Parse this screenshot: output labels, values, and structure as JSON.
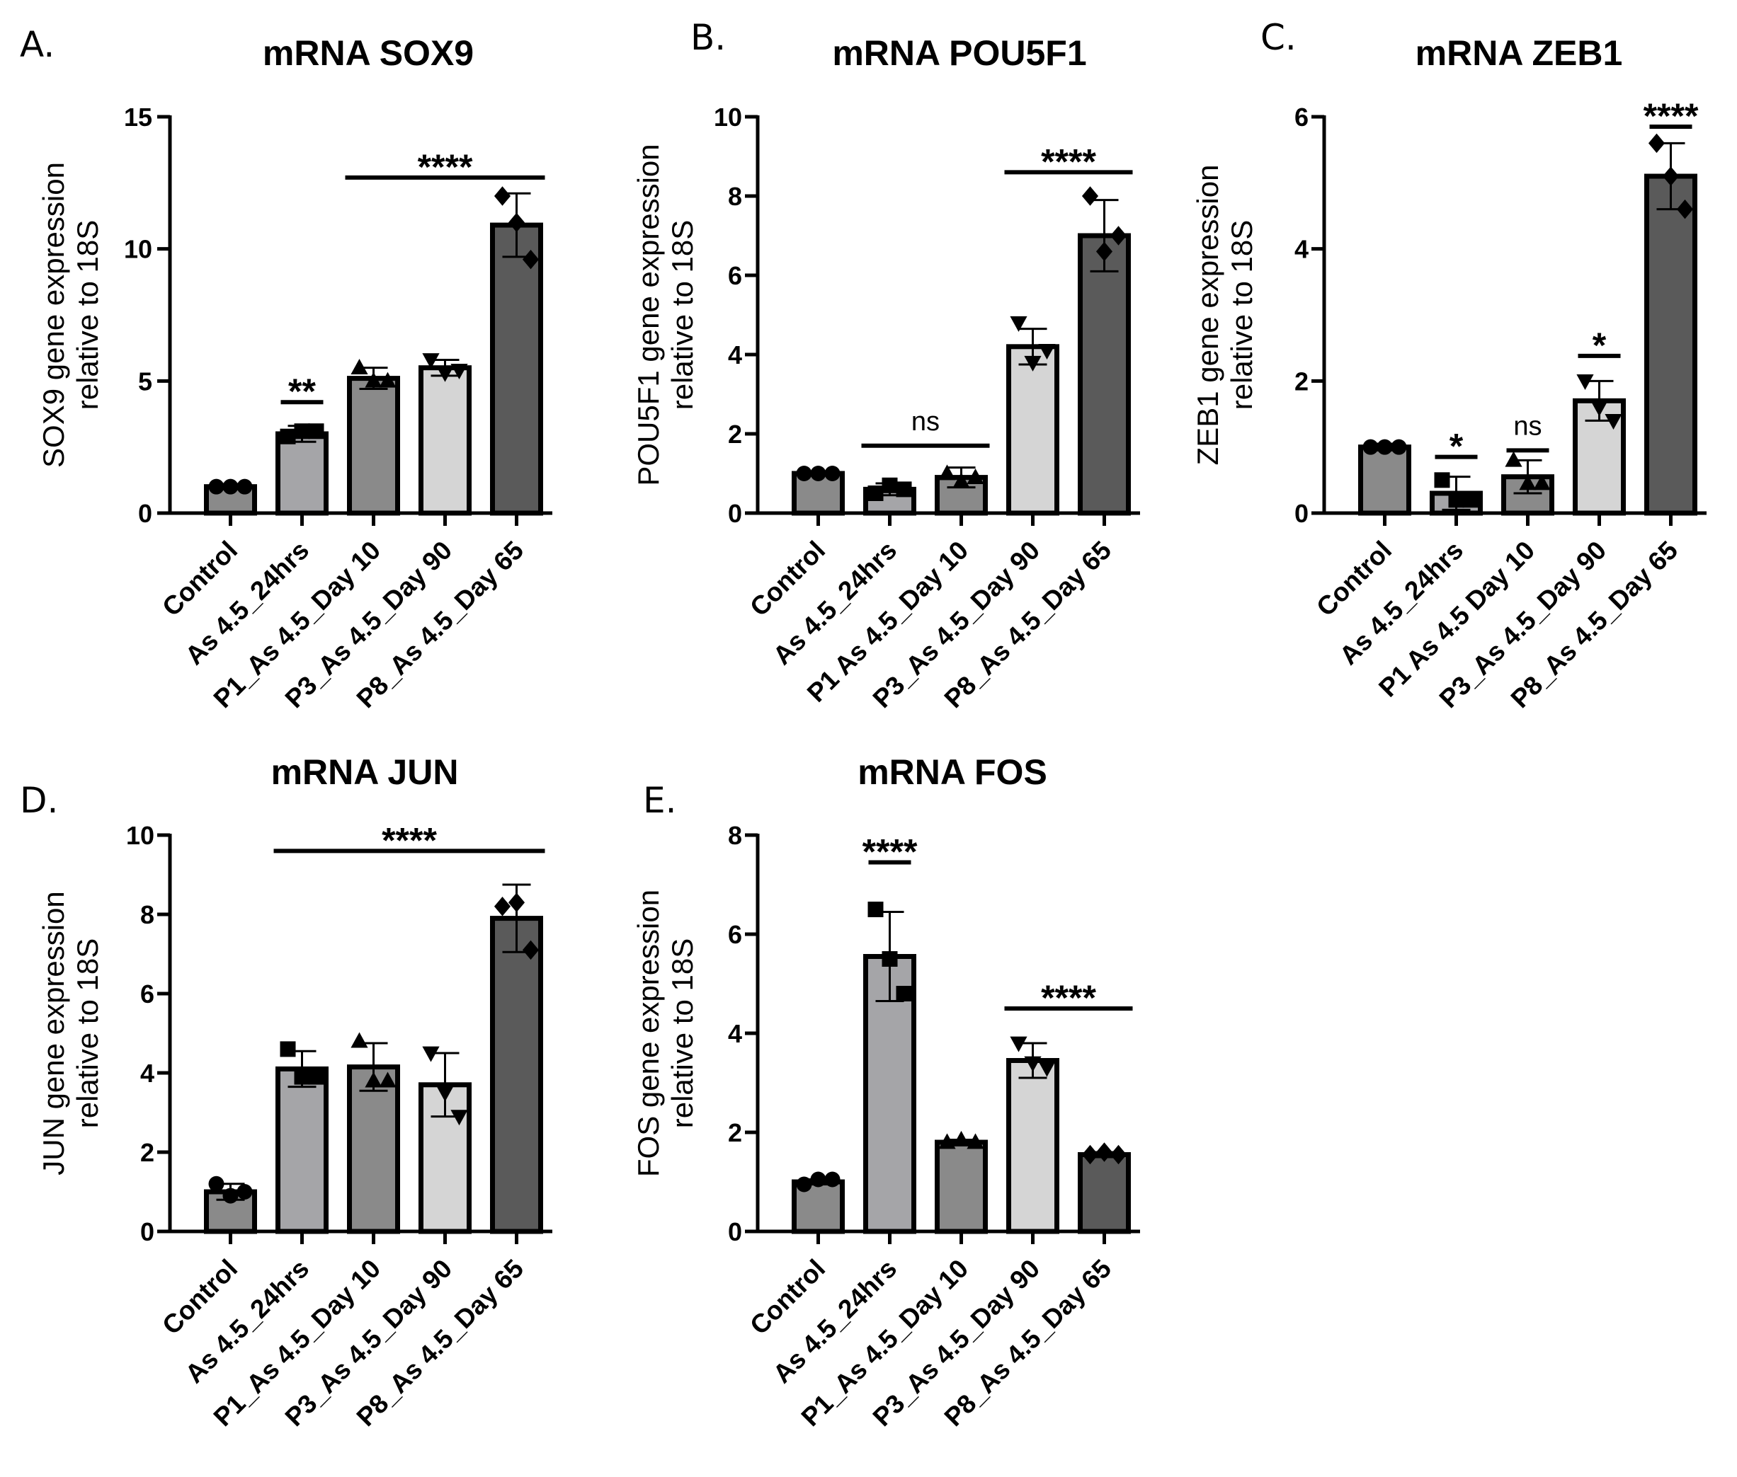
{
  "chart_data": [
    {
      "id": "A",
      "type": "bar",
      "panel_label": "A.",
      "title": "mRNA SOX9",
      "ylabel": [
        "SOX9 gene expression",
        "relative to 18S"
      ],
      "xlabel": "",
      "categories": [
        "Control",
        "As 4.5_24hrs",
        "P1_As 4.5_Day 10",
        "P3_As 4.5_Day 90",
        "P8_As 4.5_Day 65"
      ],
      "values": [
        1.0,
        3.0,
        5.1,
        5.5,
        10.9
      ],
      "errors": [
        0.1,
        0.3,
        0.4,
        0.3,
        1.2
      ],
      "points": [
        [
          1.0,
          1.0,
          1.0
        ],
        [
          2.9,
          3.1,
          3.1
        ],
        [
          5.5,
          5.0,
          5.0
        ],
        [
          5.8,
          5.3,
          5.4
        ],
        [
          12.0,
          11.0,
          9.6
        ]
      ],
      "markers": [
        "circle",
        "square",
        "triangle-up",
        "triangle-down",
        "diamond"
      ],
      "bar_colors": [
        "#8a8a8a",
        "#a5a5a8",
        "#8a8a8a",
        "#d5d5d5",
        "#5a5a5a"
      ],
      "ylim": [
        0,
        15
      ],
      "yticks": [
        "0",
        "5",
        "10",
        "15"
      ],
      "ytick_values": [
        0,
        5,
        10,
        15
      ],
      "significance": [
        {
          "label": "**",
          "from": 1,
          "to": 1,
          "y": 4.2
        },
        {
          "label": "****",
          "from": 2,
          "to": 4,
          "y": 12.7
        }
      ]
    },
    {
      "id": "B",
      "type": "bar",
      "panel_label": "B.",
      "title": "mRNA POU5F1",
      "ylabel": [
        "POU5F1 gene expression",
        "relative to 18S"
      ],
      "xlabel": "",
      "categories": [
        "Control",
        "As 4.5_24hrs",
        "P1 As 4.5_Day 10",
        "P3_As 4.5_Day 90",
        "P8_As 4.5_Day 65"
      ],
      "values": [
        1.0,
        0.6,
        0.9,
        4.2,
        7.0
      ],
      "errors": [
        0.05,
        0.15,
        0.25,
        0.45,
        0.9
      ],
      "points": [
        [
          1.0,
          1.0,
          1.0
        ],
        [
          0.5,
          0.7,
          0.6
        ],
        [
          1.0,
          0.8,
          0.9
        ],
        [
          4.8,
          3.8,
          4.1
        ],
        [
          8.0,
          6.6,
          7.0
        ]
      ],
      "markers": [
        "circle",
        "square",
        "triangle-up",
        "triangle-down",
        "diamond"
      ],
      "bar_colors": [
        "#8a8a8a",
        "#a5a5a8",
        "#8a8a8a",
        "#d5d5d5",
        "#5a5a5a"
      ],
      "ylim": [
        0,
        10
      ],
      "yticks": [
        "0",
        "2",
        "4",
        "6",
        "8",
        "10"
      ],
      "ytick_values": [
        0,
        2,
        4,
        6,
        8,
        10
      ],
      "significance": [
        {
          "label": "ns",
          "from": 1,
          "to": 2,
          "y": 1.7
        },
        {
          "label": "****",
          "from": 3,
          "to": 4,
          "y": 8.6
        }
      ]
    },
    {
      "id": "C",
      "type": "bar",
      "panel_label": "C.",
      "title": "mRNA ZEB1",
      "ylabel": [
        "ZEB1 gene expression",
        "relative to 18S"
      ],
      "xlabel": "",
      "categories": [
        "Control",
        "As 4.5_24hrs",
        "P1 As 4.5 Day 10",
        "P3_As 4.5_Day 90",
        "P8_As 4.5_Day 65"
      ],
      "values": [
        1.0,
        0.3,
        0.55,
        1.7,
        5.1
      ],
      "errors": [
        0.05,
        0.25,
        0.25,
        0.3,
        0.5
      ],
      "points": [
        [
          1.0,
          1.0,
          1.0
        ],
        [
          0.5,
          0.2,
          0.2
        ],
        [
          0.8,
          0.45,
          0.45
        ],
        [
          2.0,
          1.6,
          1.4
        ],
        [
          5.6,
          5.1,
          4.6
        ]
      ],
      "markers": [
        "circle",
        "square",
        "triangle-up",
        "triangle-down",
        "diamond"
      ],
      "bar_colors": [
        "#8a8a8a",
        "#a5a5a8",
        "#8a8a8a",
        "#d5d5d5",
        "#5a5a5a"
      ],
      "ylim": [
        0,
        6
      ],
      "yticks": [
        "0",
        "2",
        "4",
        "6"
      ],
      "ytick_values": [
        0,
        2,
        4,
        6
      ],
      "significance": [
        {
          "label": "*",
          "from": 1,
          "to": 1,
          "y": 0.85
        },
        {
          "label": "ns",
          "from": 2,
          "to": 2,
          "y": 0.95
        },
        {
          "label": "*",
          "from": 3,
          "to": 3,
          "y": 2.38
        },
        {
          "label": "****",
          "from": 4,
          "to": 4,
          "y": 5.85
        }
      ]
    },
    {
      "id": "D",
      "type": "bar",
      "panel_label": "D.",
      "title": "mRNA JUN",
      "ylabel": [
        "JUN gene expression",
        "relative to 18S"
      ],
      "xlabel": "",
      "categories": [
        "Control",
        "As 4.5_24hrs",
        "P1_As 4.5_Day 10",
        "P3_As 4.5_Day 90",
        "P8_As 4.5_Day 65"
      ],
      "values": [
        1.0,
        4.1,
        4.15,
        3.7,
        7.9
      ],
      "errors": [
        0.2,
        0.45,
        0.6,
        0.8,
        0.85
      ],
      "points": [
        [
          1.2,
          0.9,
          1.0
        ],
        [
          4.6,
          3.9,
          3.9
        ],
        [
          4.8,
          3.8,
          3.8
        ],
        [
          4.5,
          3.5,
          2.9
        ],
        [
          8.2,
          8.3,
          7.1
        ]
      ],
      "markers": [
        "circle",
        "square",
        "triangle-up",
        "triangle-down",
        "diamond"
      ],
      "bar_colors": [
        "#8a8a8a",
        "#a5a5a8",
        "#8a8a8a",
        "#d5d5d5",
        "#5a5a5a"
      ],
      "ylim": [
        0,
        10
      ],
      "yticks": [
        "0",
        "2",
        "4",
        "6",
        "8",
        "10"
      ],
      "ytick_values": [
        0,
        2,
        4,
        6,
        8,
        10
      ],
      "significance": [
        {
          "label": "****",
          "from": 1,
          "to": 4,
          "y": 9.6
        }
      ]
    },
    {
      "id": "E",
      "type": "bar",
      "panel_label": "E.",
      "title": "mRNA FOS",
      "ylabel": [
        "FOS gene expression",
        "relative to 18S"
      ],
      "xlabel": "",
      "categories": [
        "Control",
        "As 4.5_24hrs",
        "P1_As 4.5_Day 10",
        "P3_As 4.5_Day 90",
        "P8_As 4.5_Day 65"
      ],
      "values": [
        1.0,
        5.55,
        1.8,
        3.45,
        1.55
      ],
      "errors": [
        0.05,
        0.9,
        0.05,
        0.35,
        0.05
      ],
      "points": [
        [
          0.95,
          1.05,
          1.05
        ],
        [
          6.5,
          5.5,
          4.8
        ],
        [
          1.8,
          1.85,
          1.8
        ],
        [
          3.8,
          3.4,
          3.3
        ],
        [
          1.55,
          1.6,
          1.55
        ]
      ],
      "markers": [
        "circle",
        "square",
        "triangle-up",
        "triangle-down",
        "diamond"
      ],
      "bar_colors": [
        "#8a8a8a",
        "#a5a5a8",
        "#8a8a8a",
        "#d5d5d5",
        "#5a5a5a"
      ],
      "ylim": [
        0,
        8
      ],
      "yticks": [
        "0",
        "2",
        "4",
        "6",
        "8"
      ],
      "ytick_values": [
        0,
        2,
        4,
        6,
        8
      ],
      "significance": [
        {
          "label": "****",
          "from": 1,
          "to": 1,
          "y": 7.45
        },
        {
          "label": "****",
          "from": 3,
          "to": 4,
          "y": 4.5
        }
      ]
    }
  ]
}
